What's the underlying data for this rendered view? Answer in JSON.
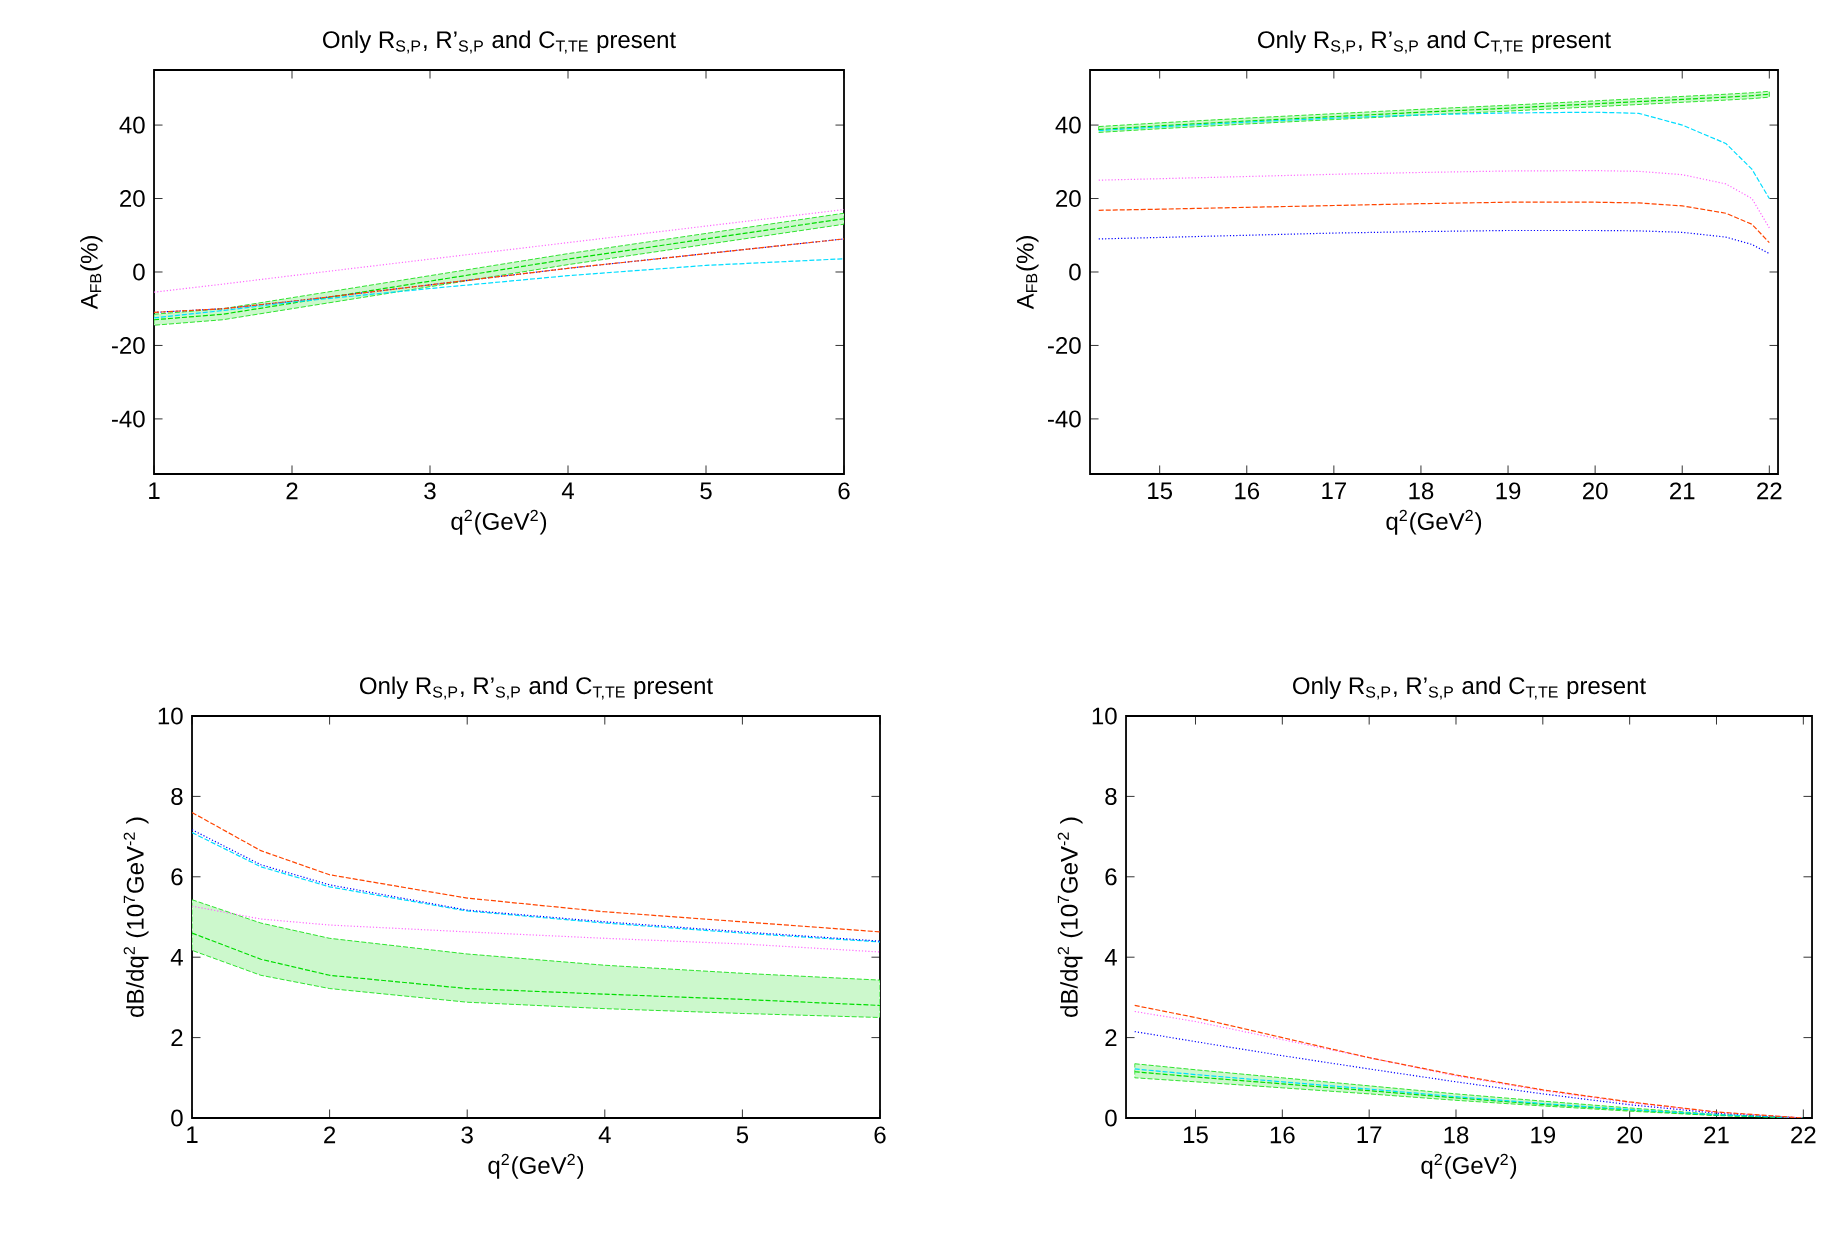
{
  "chart_data": [
    {
      "type": "line",
      "title": "Only R$_{S,P}$, R’$_{S,P}$ and C$_{T,TE}$ present",
      "xlabel": "q$^{2}$(GeV$^{2}$)",
      "ylabel": "A$_{FB}$(%)",
      "xlim": [
        1,
        6
      ],
      "ylim": [
        -55,
        55
      ],
      "xticks": [
        1,
        2,
        3,
        4,
        5,
        6
      ],
      "yticks": [
        -40,
        -20,
        0,
        20,
        40
      ],
      "x": [
        1,
        1.5,
        2,
        3,
        4,
        5,
        6
      ],
      "series": [
        {
          "color": "#00dd00",
          "line_style": "dashed",
          "values": [
            -13,
            -11.5,
            -8.5,
            -2.5,
            3.5,
            9,
            14.5
          ],
          "lower": [
            -14.5,
            -13,
            -10,
            -4,
            2,
            7.5,
            13
          ],
          "upper": [
            -11.5,
            -10,
            -7,
            -1,
            5,
            10.5,
            16
          ]
        },
        {
          "color": "#ff66ff",
          "line_style": "dotted",
          "values": [
            -5.5,
            -3.3,
            -1,
            3.5,
            8,
            12.5,
            17
          ]
        },
        {
          "color": "#0000ff",
          "line_style": "dotted",
          "values": [
            -11,
            -10,
            -8,
            -3.5,
            1,
            5,
            9
          ]
        },
        {
          "color": "#ff4500",
          "line_style": "dashed",
          "values": [
            -11,
            -10,
            -8,
            -3.5,
            1,
            5,
            9
          ]
        },
        {
          "color": "#00ddff",
          "line_style": "dashed",
          "values": [
            -12.5,
            -10.5,
            -8.2,
            -4.5,
            -1,
            1.8,
            3.6
          ]
        }
      ]
    },
    {
      "type": "line",
      "title": "Only R$_{S,P}$, R’$_{S,P}$ and C$_{T,TE}$ present",
      "xlabel": "q$^{2}$(GeV$^{2}$)",
      "ylabel": "A$_{FB}$(%)",
      "xlim": [
        14.2,
        22.1
      ],
      "ylim": [
        -55,
        55
      ],
      "xticks": [
        15,
        16,
        17,
        18,
        19,
        20,
        21,
        22
      ],
      "yticks": [
        -40,
        -20,
        0,
        20,
        40
      ],
      "x": [
        14.3,
        15,
        16,
        17,
        18,
        19,
        20,
        20.5,
        21,
        21.5,
        21.8,
        22
      ],
      "series": [
        {
          "color": "#00dd00",
          "line_style": "dashed",
          "values": [
            38.8,
            39.8,
            41.1,
            42.3,
            43.5,
            44.6,
            45.8,
            46.4,
            47.0,
            47.6,
            48.0,
            48.4
          ],
          "lower": [
            38.0,
            39.0,
            40.3,
            41.5,
            42.7,
            43.8,
            45.0,
            45.6,
            46.2,
            46.8,
            47.2,
            47.6
          ],
          "upper": [
            39.6,
            40.6,
            41.9,
            43.1,
            44.3,
            45.4,
            46.6,
            47.2,
            47.8,
            48.4,
            48.8,
            49.2
          ]
        },
        {
          "color": "#00ddff",
          "line_style": "dashed",
          "values": [
            38.5,
            39.5,
            40.8,
            41.9,
            42.8,
            43.3,
            43.5,
            43.2,
            40,
            35,
            28,
            20
          ]
        },
        {
          "color": "#ff66ff",
          "line_style": "dotted",
          "values": [
            25,
            25.4,
            26,
            26.6,
            27.1,
            27.5,
            27.6,
            27.4,
            26.5,
            24,
            20,
            12
          ]
        },
        {
          "color": "#ff4500",
          "line_style": "dashed",
          "values": [
            16.8,
            17.1,
            17.6,
            18.1,
            18.6,
            19,
            19,
            18.8,
            18,
            16,
            13,
            8
          ]
        },
        {
          "color": "#0000ff",
          "line_style": "dotted",
          "values": [
            9,
            9.4,
            10,
            10.6,
            11,
            11.3,
            11.3,
            11.2,
            10.8,
            9.5,
            7.5,
            5
          ]
        }
      ]
    },
    {
      "type": "line",
      "title": "Only R$_{S,P}$, R’$_{S,P}$ and C$_{T,TE}$ present",
      "xlabel": "q$^{2}$(GeV$^{2}$)",
      "ylabel": "dB/dq$^{2}$ (10$^{7}$GeV$^{-2}$ )",
      "xlim": [
        1,
        6
      ],
      "ylim": [
        0,
        10
      ],
      "xticks": [
        1,
        2,
        3,
        4,
        5,
        6
      ],
      "yticks": [
        0,
        2,
        4,
        6,
        8,
        10
      ],
      "x": [
        1,
        1.5,
        2,
        3,
        4,
        5,
        6
      ],
      "series": [
        {
          "color": "#00dd00",
          "line_style": "dashed",
          "values": [
            4.6,
            3.95,
            3.55,
            3.22,
            3.08,
            2.95,
            2.8
          ],
          "lower": [
            4.17,
            3.55,
            3.22,
            2.88,
            2.72,
            2.6,
            2.5
          ],
          "upper": [
            5.43,
            4.85,
            4.47,
            4.08,
            3.8,
            3.6,
            3.43
          ]
        },
        {
          "color": "#ff66ff",
          "line_style": "dotted",
          "values": [
            5.27,
            4.95,
            4.8,
            4.63,
            4.47,
            4.33,
            4.13
          ]
        },
        {
          "color": "#00ddff",
          "line_style": "dashed",
          "values": [
            7.1,
            6.25,
            5.75,
            5.15,
            4.85,
            4.6,
            4.38
          ]
        },
        {
          "color": "#0000ff",
          "line_style": "dotted",
          "values": [
            7.17,
            6.3,
            5.8,
            5.17,
            4.88,
            4.63,
            4.4
          ]
        },
        {
          "color": "#ff4500",
          "line_style": "dashed",
          "values": [
            7.6,
            6.65,
            6.05,
            5.47,
            5.13,
            4.88,
            4.63
          ]
        }
      ]
    },
    {
      "type": "line",
      "title": "Only R$_{S,P}$, R’$_{S,P}$ and C$_{T,TE}$ present",
      "xlabel": "q$^{2}$(GeV$^{2}$)",
      "ylabel": "dB/dq$^{2}$ (10$^{7}$GeV$^{-2}$ )",
      "xlim": [
        14.2,
        22.1
      ],
      "ylim": [
        0,
        10
      ],
      "xticks": [
        15,
        16,
        17,
        18,
        19,
        20,
        21,
        22
      ],
      "yticks": [
        0,
        2,
        4,
        6,
        8,
        10
      ],
      "x": [
        14.3,
        15,
        16,
        17,
        18,
        19,
        20,
        21,
        22
      ],
      "series": [
        {
          "color": "#00dd00",
          "line_style": "dashed",
          "values": [
            1.15,
            1.02,
            0.85,
            0.68,
            0.5,
            0.34,
            0.2,
            0.07,
            0
          ],
          "lower": [
            1.0,
            0.9,
            0.75,
            0.6,
            0.44,
            0.3,
            0.17,
            0.06,
            0
          ],
          "upper": [
            1.35,
            1.2,
            1.0,
            0.8,
            0.6,
            0.42,
            0.25,
            0.09,
            0
          ]
        },
        {
          "color": "#00ddff",
          "line_style": "dashed",
          "values": [
            1.22,
            1.08,
            0.9,
            0.72,
            0.53,
            0.36,
            0.21,
            0.08,
            0
          ]
        },
        {
          "color": "#0000ff",
          "line_style": "dotted",
          "values": [
            2.15,
            1.9,
            1.55,
            1.22,
            0.9,
            0.6,
            0.33,
            0.12,
            0
          ]
        },
        {
          "color": "#ff66ff",
          "line_style": "dotted",
          "values": [
            2.65,
            2.4,
            1.95,
            1.5,
            1.05,
            0.68,
            0.38,
            0.14,
            0
          ]
        },
        {
          "color": "#ff4500",
          "line_style": "dashed",
          "values": [
            2.8,
            2.5,
            2.0,
            1.5,
            1.07,
            0.7,
            0.4,
            0.15,
            0
          ]
        }
      ]
    }
  ]
}
